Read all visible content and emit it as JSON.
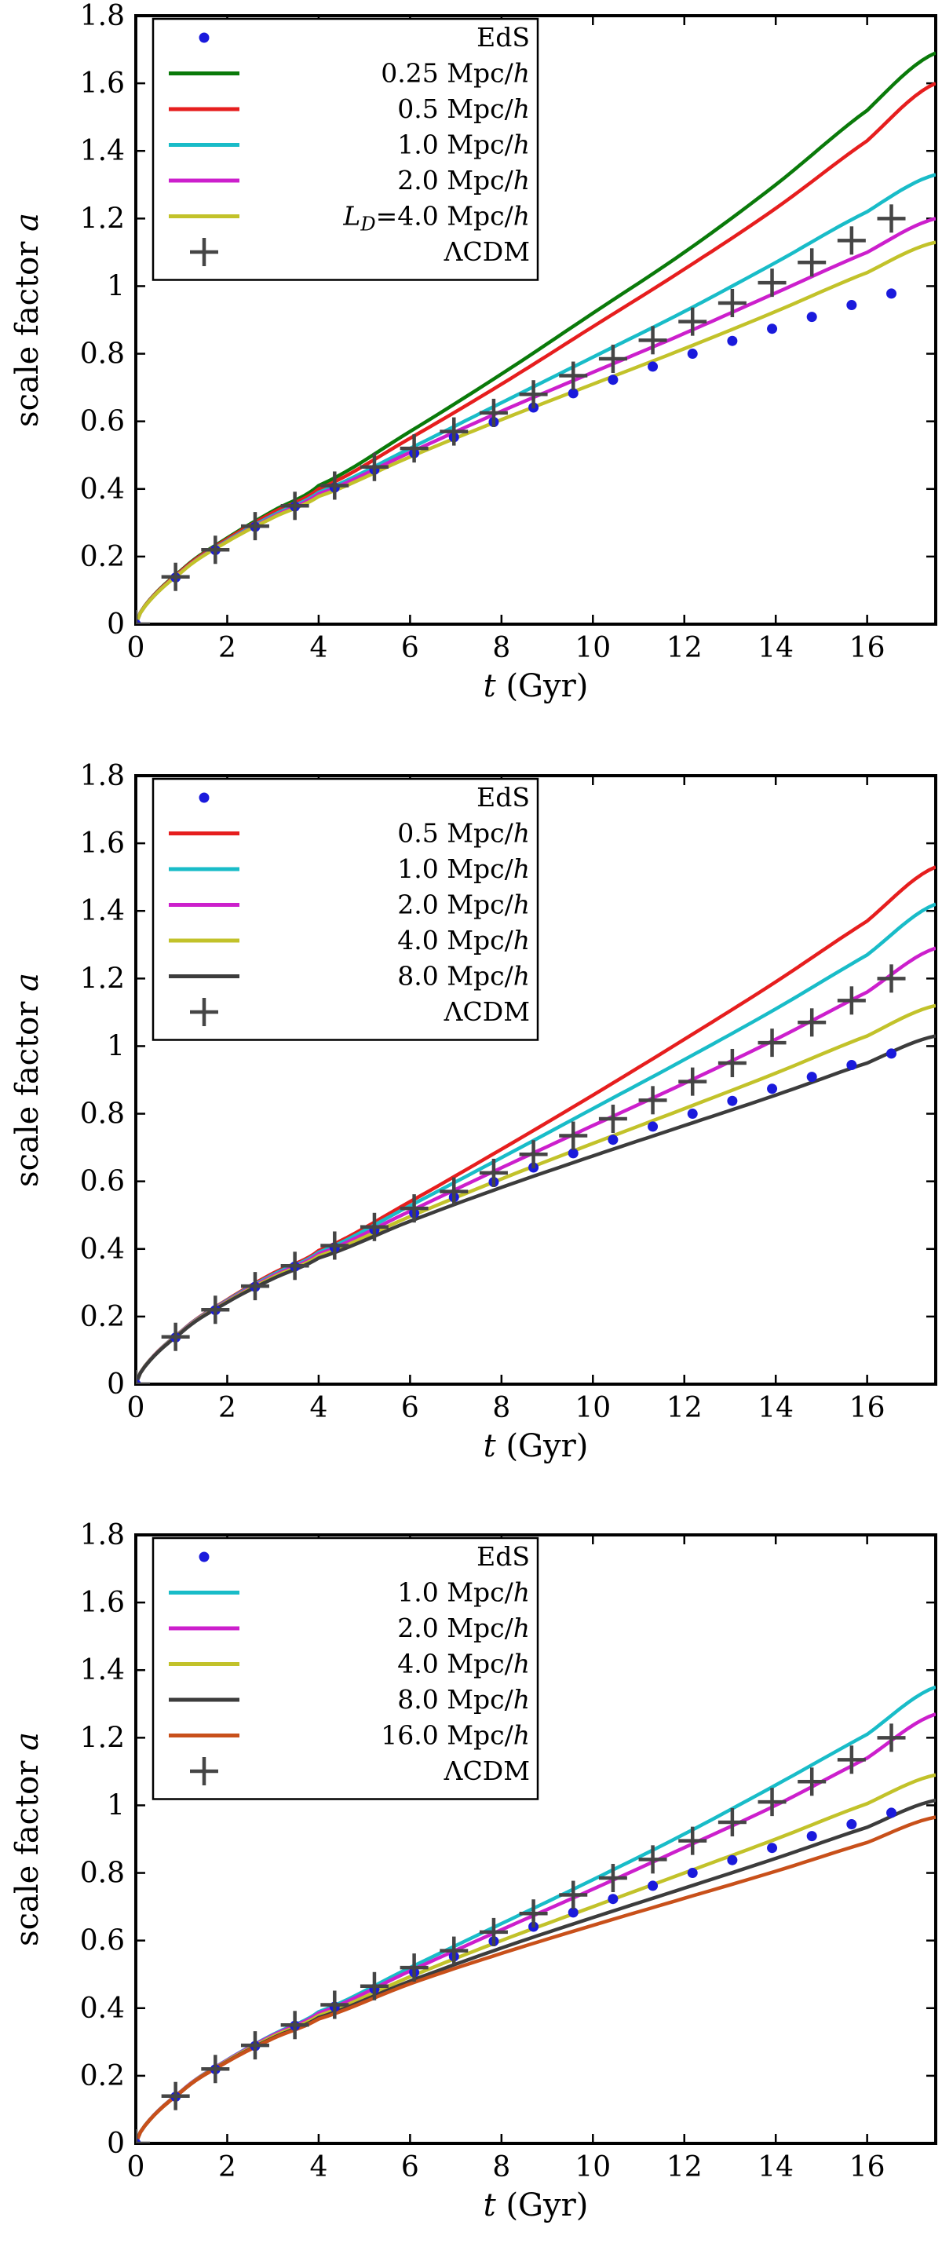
{
  "colors": {
    "eds": "#1a1adc",
    "l025": "#0a7a0a",
    "l05": "#e61e1e",
    "l10": "#19bcc8",
    "l20": "#cc1fcc",
    "l40": "#c2c22a",
    "l80": "#3c3c3c",
    "l160": "#c8501a",
    "lcdm": "#454545",
    "axes": "#000000"
  },
  "chart_data": [
    {
      "type": "line",
      "xlabel": "t (Gyr)",
      "ylabel": "scale factor a",
      "xlim": [
        0,
        17.5
      ],
      "ylim": [
        0,
        1.8
      ],
      "x_ticks": [
        "0",
        "2",
        "4",
        "6",
        "8",
        "10",
        "12",
        "14",
        "16"
      ],
      "y_ticks": [
        "0",
        "0.2",
        "0.4",
        "0.6",
        "0.8",
        "1",
        "1.2",
        "1.4",
        "1.6",
        "1.8"
      ],
      "legend_position": "top-left",
      "eds_points": {
        "name": "EdS",
        "x": [
          0.87,
          1.74,
          2.61,
          3.48,
          4.35,
          5.22,
          6.09,
          6.96,
          7.83,
          8.7,
          9.57,
          10.44,
          11.31,
          12.18,
          13.05,
          13.92,
          14.79,
          15.66,
          16.53
        ],
        "y": [
          0.138,
          0.219,
          0.288,
          0.348,
          0.404,
          0.457,
          0.506,
          0.553,
          0.598,
          0.641,
          0.683,
          0.723,
          0.762,
          0.8,
          0.838,
          0.874,
          0.909,
          0.944,
          0.978
        ]
      },
      "lcdm_points": {
        "name": "ΛCDM",
        "x": [
          0.87,
          1.74,
          2.61,
          3.48,
          4.35,
          5.22,
          6.09,
          6.96,
          7.83,
          8.7,
          9.57,
          10.44,
          11.31,
          12.18,
          13.05,
          13.92,
          14.79,
          15.66,
          16.53
        ],
        "y": [
          0.14,
          0.22,
          0.29,
          0.35,
          0.41,
          0.465,
          0.52,
          0.57,
          0.625,
          0.68,
          0.735,
          0.785,
          0.84,
          0.895,
          0.95,
          1.01,
          1.07,
          1.135,
          1.2
        ]
      },
      "series": [
        {
          "name": "0.25 Mpc/h",
          "color_key": "l025",
          "x": [
            0,
            1,
            2,
            3,
            4,
            6,
            8,
            10,
            12,
            14,
            16,
            17.5
          ],
          "y": [
            0,
            0.16,
            0.255,
            0.335,
            0.41,
            0.57,
            0.74,
            0.92,
            1.1,
            1.3,
            1.52,
            1.69
          ]
        },
        {
          "name": "0.5 Mpc/h",
          "color_key": "l05",
          "x": [
            0,
            1,
            2,
            3,
            4,
            6,
            8,
            10,
            12,
            14,
            16,
            17.5
          ],
          "y": [
            0,
            0.158,
            0.252,
            0.33,
            0.4,
            0.55,
            0.71,
            0.88,
            1.05,
            1.23,
            1.43,
            1.6
          ]
        },
        {
          "name": "1.0 Mpc/h",
          "color_key": "l10",
          "x": [
            0,
            1,
            2,
            3,
            4,
            6,
            8,
            10,
            12,
            14,
            16,
            17.5
          ],
          "y": [
            0,
            0.155,
            0.247,
            0.322,
            0.39,
            0.52,
            0.655,
            0.79,
            0.925,
            1.07,
            1.22,
            1.33
          ]
        },
        {
          "name": "2.0 Mpc/h",
          "color_key": "l20",
          "x": [
            0,
            1,
            2,
            3,
            4,
            6,
            8,
            10,
            12,
            14,
            16,
            17.5
          ],
          "y": [
            0,
            0.155,
            0.245,
            0.318,
            0.385,
            0.508,
            0.63,
            0.745,
            0.86,
            0.98,
            1.1,
            1.2
          ]
        },
        {
          "name": "L_D=4.0 Mpc/h",
          "color_key": "l40",
          "x": [
            0,
            1,
            2,
            3,
            4,
            6,
            8,
            10,
            12,
            14,
            16,
            17.5
          ],
          "y": [
            0,
            0.154,
            0.244,
            0.315,
            0.378,
            0.495,
            0.605,
            0.71,
            0.815,
            0.925,
            1.04,
            1.13
          ]
        }
      ],
      "legend": [
        "EdS",
        "0.25 Mpc/h",
        "0.5 Mpc/h",
        "1.0 Mpc/h",
        "2.0 Mpc/h",
        "L_D=4.0 Mpc/h",
        "ΛCDM"
      ]
    },
    {
      "type": "line",
      "xlabel": "t (Gyr)",
      "ylabel": "scale factor a",
      "xlim": [
        0,
        17.5
      ],
      "ylim": [
        0,
        1.8
      ],
      "x_ticks": [
        "0",
        "2",
        "4",
        "6",
        "8",
        "10",
        "12",
        "14",
        "16"
      ],
      "y_ticks": [
        "0",
        "0.2",
        "0.4",
        "0.6",
        "0.8",
        "1",
        "1.2",
        "1.4",
        "1.6",
        "1.8"
      ],
      "legend_position": "top-left",
      "eds_points": {
        "name": "EdS",
        "x": [
          0.87,
          1.74,
          2.61,
          3.48,
          4.35,
          5.22,
          6.09,
          6.96,
          7.83,
          8.7,
          9.57,
          10.44,
          11.31,
          12.18,
          13.05,
          13.92,
          14.79,
          15.66,
          16.53
        ],
        "y": [
          0.138,
          0.219,
          0.288,
          0.348,
          0.404,
          0.457,
          0.506,
          0.553,
          0.598,
          0.641,
          0.683,
          0.723,
          0.762,
          0.8,
          0.838,
          0.874,
          0.909,
          0.944,
          0.978
        ]
      },
      "lcdm_points": {
        "name": "ΛCDM",
        "x": [
          0.87,
          1.74,
          2.61,
          3.48,
          4.35,
          5.22,
          6.09,
          6.96,
          7.83,
          8.7,
          9.57,
          10.44,
          11.31,
          12.18,
          13.05,
          13.92,
          14.79,
          15.66,
          16.53
        ],
        "y": [
          0.14,
          0.22,
          0.29,
          0.35,
          0.41,
          0.465,
          0.52,
          0.57,
          0.625,
          0.68,
          0.735,
          0.785,
          0.84,
          0.895,
          0.95,
          1.01,
          1.07,
          1.135,
          1.2
        ]
      },
      "series": [
        {
          "name": "0.5 Mpc/h",
          "color_key": "l05",
          "x": [
            0,
            1,
            2,
            3,
            4,
            6,
            8,
            10,
            12,
            14,
            16,
            17.5
          ],
          "y": [
            0,
            0.157,
            0.25,
            0.328,
            0.395,
            0.54,
            0.695,
            0.855,
            1.02,
            1.19,
            1.37,
            1.53
          ]
        },
        {
          "name": "1.0 Mpc/h",
          "color_key": "l10",
          "x": [
            0,
            1,
            2,
            3,
            4,
            6,
            8,
            10,
            12,
            14,
            16,
            17.5
          ],
          "y": [
            0,
            0.156,
            0.248,
            0.324,
            0.39,
            0.528,
            0.67,
            0.815,
            0.96,
            1.11,
            1.27,
            1.42
          ]
        },
        {
          "name": "2.0 Mpc/h",
          "color_key": "l20",
          "x": [
            0,
            1,
            2,
            3,
            4,
            6,
            8,
            10,
            12,
            14,
            16,
            17.5
          ],
          "y": [
            0,
            0.155,
            0.246,
            0.32,
            0.385,
            0.512,
            0.64,
            0.765,
            0.89,
            1.02,
            1.16,
            1.29
          ]
        },
        {
          "name": "4.0 Mpc/h",
          "color_key": "l40",
          "x": [
            0,
            1,
            2,
            3,
            4,
            6,
            8,
            10,
            12,
            14,
            16,
            17.5
          ],
          "y": [
            0,
            0.154,
            0.244,
            0.316,
            0.379,
            0.496,
            0.607,
            0.712,
            0.815,
            0.92,
            1.03,
            1.12
          ]
        },
        {
          "name": "8.0 Mpc/h",
          "color_key": "l80",
          "x": [
            0,
            1,
            2,
            3,
            4,
            6,
            8,
            10,
            12,
            14,
            16,
            17.5
          ],
          "y": [
            0,
            0.153,
            0.242,
            0.312,
            0.373,
            0.482,
            0.582,
            0.675,
            0.765,
            0.855,
            0.95,
            1.03
          ]
        }
      ],
      "legend": [
        "EdS",
        "0.5 Mpc/h",
        "1.0 Mpc/h",
        "2.0 Mpc/h",
        "4.0 Mpc/h",
        "8.0 Mpc/h",
        "ΛCDM"
      ]
    },
    {
      "type": "line",
      "xlabel": "t (Gyr)",
      "ylabel": "scale factor a",
      "xlim": [
        0,
        17.5
      ],
      "ylim": [
        0,
        1.8
      ],
      "x_ticks": [
        "0",
        "2",
        "4",
        "6",
        "8",
        "10",
        "12",
        "14",
        "16"
      ],
      "y_ticks": [
        "0",
        "0.2",
        "0.4",
        "0.6",
        "0.8",
        "1",
        "1.2",
        "1.4",
        "1.6",
        "1.8"
      ],
      "legend_position": "top-left",
      "eds_points": {
        "name": "EdS",
        "x": [
          0.87,
          1.74,
          2.61,
          3.48,
          4.35,
          5.22,
          6.09,
          6.96,
          7.83,
          8.7,
          9.57,
          10.44,
          11.31,
          12.18,
          13.05,
          13.92,
          14.79,
          15.66,
          16.53
        ],
        "y": [
          0.138,
          0.219,
          0.288,
          0.348,
          0.404,
          0.457,
          0.506,
          0.553,
          0.598,
          0.641,
          0.683,
          0.723,
          0.762,
          0.8,
          0.838,
          0.874,
          0.909,
          0.944,
          0.978
        ]
      },
      "lcdm_points": {
        "name": "ΛCDM",
        "x": [
          0.87,
          1.74,
          2.61,
          3.48,
          4.35,
          5.22,
          6.09,
          6.96,
          7.83,
          8.7,
          9.57,
          10.44,
          11.31,
          12.18,
          13.05,
          13.92,
          14.79,
          15.66,
          16.53
        ],
        "y": [
          0.14,
          0.22,
          0.29,
          0.35,
          0.41,
          0.465,
          0.52,
          0.57,
          0.625,
          0.68,
          0.735,
          0.785,
          0.84,
          0.895,
          0.95,
          1.01,
          1.07,
          1.135,
          1.2
        ]
      },
      "series": [
        {
          "name": "1.0 Mpc/h",
          "color_key": "l10",
          "x": [
            0,
            1,
            2,
            3,
            4,
            6,
            8,
            10,
            12,
            14,
            16,
            17.5
          ],
          "y": [
            0,
            0.155,
            0.247,
            0.322,
            0.389,
            0.52,
            0.65,
            0.78,
            0.915,
            1.06,
            1.21,
            1.35
          ]
        },
        {
          "name": "2.0 Mpc/h",
          "color_key": "l20",
          "x": [
            0,
            1,
            2,
            3,
            4,
            6,
            8,
            10,
            12,
            14,
            16,
            17.5
          ],
          "y": [
            0,
            0.155,
            0.246,
            0.32,
            0.385,
            0.51,
            0.632,
            0.752,
            0.875,
            1.0,
            1.14,
            1.27
          ]
        },
        {
          "name": "4.0 Mpc/h",
          "color_key": "l40",
          "x": [
            0,
            1,
            2,
            3,
            4,
            6,
            8,
            10,
            12,
            14,
            16,
            17.5
          ],
          "y": [
            0,
            0.154,
            0.244,
            0.316,
            0.378,
            0.493,
            0.6,
            0.7,
            0.8,
            0.9,
            1.005,
            1.09
          ]
        },
        {
          "name": "8.0 Mpc/h",
          "color_key": "l80",
          "x": [
            0,
            1,
            2,
            3,
            4,
            6,
            8,
            10,
            12,
            14,
            16,
            17.5
          ],
          "y": [
            0,
            0.153,
            0.242,
            0.312,
            0.372,
            0.48,
            0.578,
            0.668,
            0.755,
            0.843,
            0.935,
            1.015
          ]
        },
        {
          "name": "16.0 Mpc/h",
          "color_key": "l160",
          "x": [
            0,
            1,
            2,
            3,
            4,
            6,
            8,
            10,
            12,
            14,
            16,
            17.5
          ],
          "y": [
            0,
            0.153,
            0.241,
            0.31,
            0.368,
            0.472,
            0.562,
            0.645,
            0.725,
            0.805,
            0.89,
            0.965
          ]
        }
      ],
      "legend": [
        "EdS",
        "1.0 Mpc/h",
        "2.0 Mpc/h",
        "4.0 Mpc/h",
        "8.0 Mpc/h",
        "16.0 Mpc/h",
        "ΛCDM"
      ]
    }
  ]
}
